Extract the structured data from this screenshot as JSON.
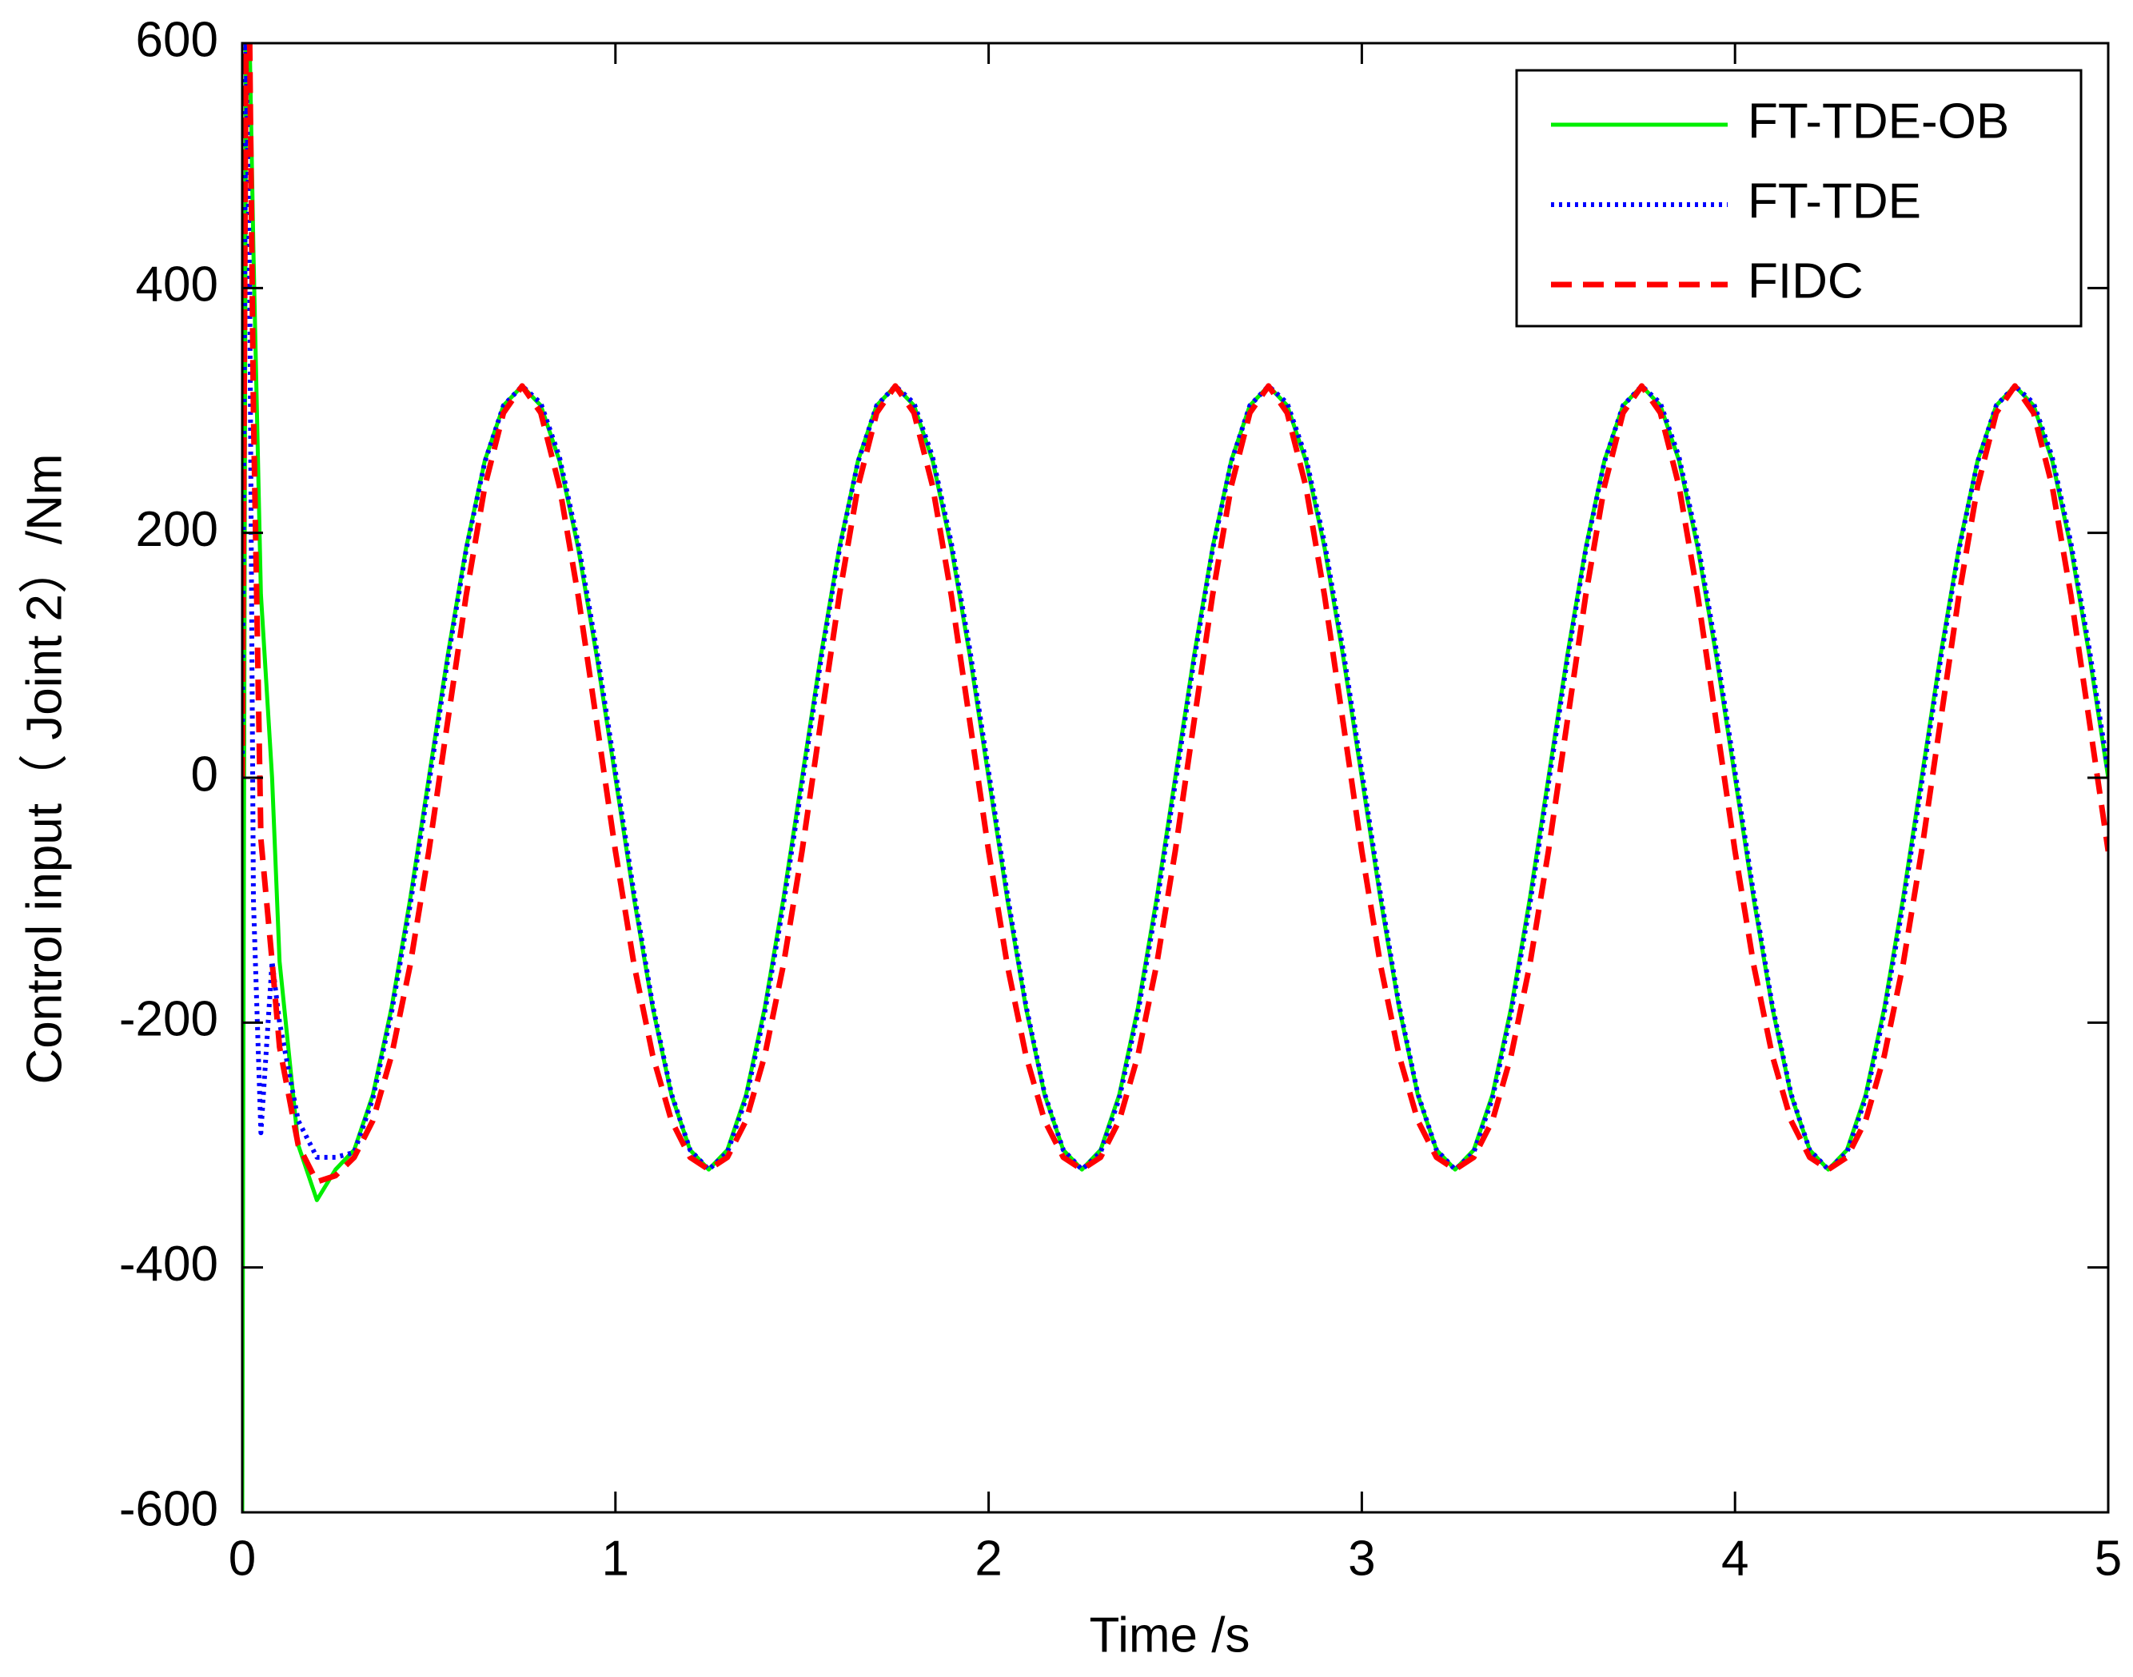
{
  "chart_data": {
    "type": "line",
    "x_label": "Time /s",
    "y_label": "Control input（ Joint 2）/Nm",
    "x": [
      0,
      0.01,
      0.02,
      0.03,
      0.05,
      0.08,
      0.1,
      0.15,
      0.2,
      0.25,
      0.3,
      0.35,
      0.4,
      0.45,
      0.5,
      0.55,
      0.6,
      0.65,
      0.7,
      0.75,
      0.8,
      0.85,
      0.9,
      0.95,
      1,
      1.05,
      1.1,
      1.15,
      1.2,
      1.25,
      1.3,
      1.35,
      1.4,
      1.45,
      1.5,
      1.55,
      1.6,
      1.65,
      1.7,
      1.75,
      1.8,
      1.85,
      1.9,
      1.95,
      2,
      2.05,
      2.1,
      2.15,
      2.2,
      2.25,
      2.3,
      2.35,
      2.4,
      2.45,
      2.5,
      2.55,
      2.6,
      2.65,
      2.7,
      2.75,
      2.8,
      2.85,
      2.9,
      2.95,
      3,
      3.05,
      3.1,
      3.15,
      3.2,
      3.25,
      3.3,
      3.35,
      3.4,
      3.45,
      3.5,
      3.55,
      3.6,
      3.65,
      3.7,
      3.75,
      3.8,
      3.85,
      3.9,
      3.95,
      4,
      4.05,
      4.1,
      4.15,
      4.2,
      4.25,
      4.3,
      4.35,
      4.4,
      4.45,
      4.5,
      4.55,
      4.6,
      4.65,
      4.7,
      4.75,
      4.8,
      4.85,
      4.9,
      4.95,
      5
    ],
    "series": [
      {
        "name": "FT-TDE-OB",
        "color": "#00ee00",
        "style": "solid",
        "values": [
          -600,
          600,
          600,
          430,
          150,
          0,
          -150,
          -300,
          -345,
          -320,
          -304,
          -259,
          -188,
          -99,
          0,
          99,
          188,
          259,
          304,
          320,
          304,
          259,
          188,
          99,
          0,
          -99,
          -188,
          -259,
          -304,
          -320,
          -304,
          -259,
          -188,
          -99,
          0,
          99,
          188,
          259,
          304,
          320,
          304,
          259,
          188,
          99,
          0,
          -99,
          -188,
          -259,
          -304,
          -320,
          -304,
          -259,
          -188,
          -99,
          0,
          99,
          188,
          259,
          304,
          320,
          304,
          259,
          188,
          99,
          0,
          -99,
          -188,
          -259,
          -304,
          -320,
          -304,
          -259,
          -188,
          -99,
          0,
          99,
          188,
          259,
          304,
          320,
          304,
          259,
          188,
          99,
          0,
          -99,
          -188,
          -259,
          -304,
          -320,
          -304,
          -259,
          -188,
          -99,
          0,
          99,
          188,
          259,
          304,
          320,
          304,
          259,
          188,
          99,
          0
        ]
      },
      {
        "name": "FT-TDE",
        "color": "#0000ff",
        "style": "dotted",
        "values": [
          0,
          600,
          400,
          -100,
          -290,
          -150,
          -200,
          -280,
          -310,
          -310,
          -306,
          -262,
          -192,
          -104,
          -5,
          95,
          186,
          258,
          304,
          320,
          306,
          262,
          192,
          104,
          5,
          -95,
          -186,
          -258,
          -304,
          -320,
          -306,
          -262,
          -192,
          -104,
          -5,
          95,
          186,
          258,
          304,
          320,
          306,
          262,
          192,
          104,
          5,
          -95,
          -186,
          -258,
          -304,
          -320,
          -306,
          -262,
          -192,
          -104,
          -5,
          95,
          186,
          258,
          304,
          320,
          306,
          262,
          192,
          104,
          5,
          -95,
          -186,
          -258,
          -304,
          -320,
          -306,
          -262,
          -192,
          -104,
          -5,
          95,
          186,
          258,
          304,
          320,
          306,
          262,
          192,
          104,
          5,
          -95,
          -186,
          -258,
          -304,
          -320,
          -306,
          -262,
          -192,
          -104,
          -5,
          95,
          186,
          258,
          304,
          320,
          306,
          262,
          192,
          104,
          5
        ]
      },
      {
        "name": "FIDC",
        "color": "#ff0000",
        "style": "dashed",
        "values": [
          0,
          600,
          600,
          300,
          -50,
          -150,
          -220,
          -300,
          -330,
          -325,
          -310,
          -280,
          -227,
          -153,
          -60,
          45,
          149,
          238,
          298,
          320,
          298,
          238,
          149,
          45,
          -60,
          -153,
          -227,
          -280,
          -310,
          -320,
          -310,
          -280,
          -227,
          -153,
          -60,
          45,
          149,
          238,
          298,
          320,
          298,
          238,
          149,
          45,
          -60,
          -153,
          -227,
          -280,
          -310,
          -320,
          -310,
          -280,
          -227,
          -153,
          -60,
          45,
          149,
          238,
          298,
          320,
          298,
          238,
          149,
          45,
          -60,
          -153,
          -227,
          -280,
          -310,
          -320,
          -310,
          -280,
          -227,
          -153,
          -60,
          45,
          149,
          238,
          298,
          320,
          298,
          238,
          149,
          45,
          -60,
          -153,
          -227,
          -280,
          -310,
          -320,
          -310,
          -280,
          -227,
          -153,
          -60,
          45,
          149,
          238,
          298,
          320,
          298,
          238,
          149,
          45,
          -60
        ]
      }
    ],
    "xlim": [
      0,
      5
    ],
    "ylim": [
      -600,
      600
    ],
    "xticks": [
      0,
      1,
      2,
      3,
      4,
      5
    ],
    "yticks": [
      -600,
      -400,
      -200,
      0,
      200,
      400,
      600
    ],
    "legend": "upper right"
  }
}
